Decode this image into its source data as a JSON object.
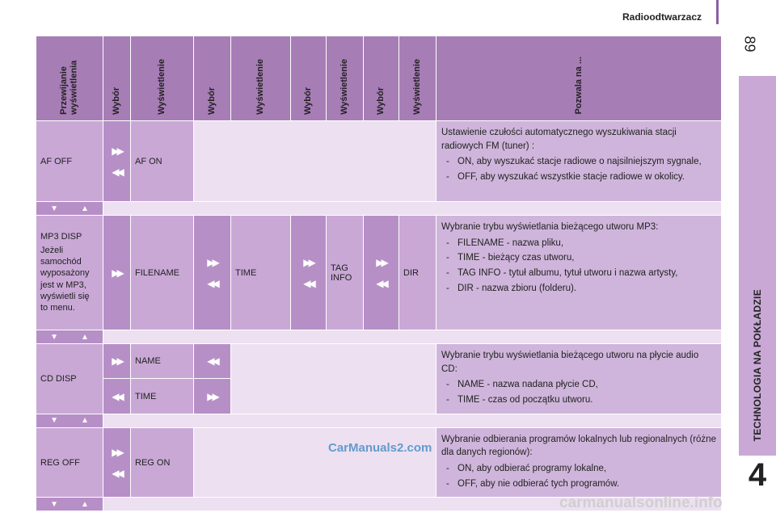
{
  "header": {
    "section_title": "Radioodtwarzacz",
    "page_number": "89"
  },
  "side_tab": {
    "label": "TECHNOLOGIA NA POKŁADZIE",
    "chapter_number": "4"
  },
  "table": {
    "headers": [
      "Przewijanie wyświetlenia",
      "Wybór",
      "Wyświetlenie",
      "Wybór",
      "Wyświetlenie",
      "Wybór",
      "Wyświetlenie",
      "Wybór",
      "Wyświetlenie",
      "Pozwala na ..."
    ],
    "rows": {
      "af": {
        "label": "AF OFF",
        "opt1": "AF ON",
        "desc_intro": "Ustawienie czułości automatycznego wyszukiwania stacji radiowych FM (tuner) :",
        "bullets": [
          "ON, aby wyszukać stacje radiowe o najsilniejszym sygnale,",
          "OFF, aby wyszukać wszystkie stacje radiowe w okolicy."
        ]
      },
      "mp3": {
        "label": "MP3 DISP",
        "sublabel": "Jeżeli samochód wyposażony jest w MP3, wyświetli się to menu.",
        "opt1": "FILENAME",
        "opt2": "TIME",
        "opt3": "TAG INFO",
        "opt4": "DIR",
        "desc_intro": "Wybranie trybu wyświetlania bieżącego utworu MP3:",
        "bullets": [
          "FILENAME - nazwa pliku,",
          "TIME - bieżący czas utworu,",
          "TAG INFO - tytuł albumu, tytuł utworu i nazwa artysty,",
          "DIR - nazwa zbioru (folderu)."
        ]
      },
      "cd": {
        "label": "CD DISP",
        "opt1": "NAME",
        "opt2": "TIME",
        "desc_intro": "Wybranie trybu wyświetlania bieżącego utworu na płycie audio CD:",
        "bullets": [
          "NAME - nazwa nadana płycie CD,",
          "TIME - czas od początku utworu."
        ]
      },
      "reg": {
        "label": "REG OFF",
        "opt1": "REG ON",
        "desc_intro": "Wybranie odbierania programów lokalnych lub regionalnych (różne dla danych regionów):",
        "bullets": [
          "ON, aby odbierać programy lokalne,",
          "OFF, aby nie odbierać tych programów."
        ]
      }
    },
    "icons": {
      "forward": "fast-forward-arrow",
      "back": "rewind-arrow",
      "down": "down-triangle",
      "up": "up-triangle"
    }
  },
  "watermarks": {
    "top": "CarManuals2.com",
    "bottom": "carmanualsonline.info"
  },
  "colors": {
    "header_bg": "#a77db6",
    "cell_bg": "#c9a8d6",
    "light_bg": "#ede0f1",
    "arrow_bg": "#b78fc7"
  }
}
